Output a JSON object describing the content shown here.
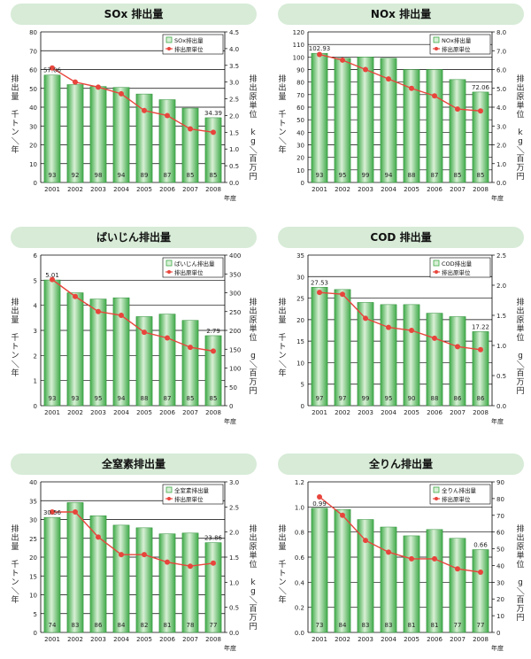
{
  "colors": {
    "bar": "#3faa49",
    "bar_light": "#d9f0d6",
    "line": "#e8453c",
    "banner": "#d7ebd7"
  },
  "chart_data": [
    {
      "type": "bar",
      "title": "SOx 排出量",
      "categories": [
        "2001",
        "2002",
        "2003",
        "2004",
        "2005",
        "2006",
        "2007",
        "2008"
      ],
      "xlabel": "年度",
      "ylabel": "排出量　千トン／年",
      "ylim": [
        0,
        80
      ],
      "yticks": [
        "0",
        "10",
        "20",
        "30",
        "40",
        "50",
        "60",
        "70",
        "80"
      ],
      "y2label": "排出原単位　kg／百万円",
      "y2lim": [
        0,
        4.5
      ],
      "y2ticks": [
        "0.0",
        "0.5",
        "1.0",
        "1.5",
        "2.0",
        "2.5",
        "3.0",
        "3.5",
        "4.0",
        "4.5"
      ],
      "legend": [
        "SOx排出量",
        "排出原単位"
      ],
      "legend_position": "top-right",
      "series": [
        {
          "name": "SOx排出量",
          "values": [
            57.06,
            52,
            51,
            50.5,
            47,
            44,
            39.5,
            34.39
          ]
        },
        {
          "name": "排出原単位",
          "values": [
            3.42,
            3.0,
            2.85,
            2.65,
            2.15,
            2.0,
            1.6,
            1.5
          ]
        }
      ],
      "bar_labels": [
        "93",
        "92",
        "98",
        "94",
        "89",
        "87",
        "85",
        "85"
      ],
      "value_labels": [
        "57.06",
        "34.39"
      ]
    },
    {
      "type": "bar",
      "title": "NOx 排出量",
      "categories": [
        "2001",
        "2002",
        "2003",
        "2004",
        "2005",
        "2006",
        "2007",
        "2008"
      ],
      "xlabel": "年度",
      "ylabel": "排出量　千トン／年",
      "ylim": [
        0,
        120
      ],
      "yticks": [
        "0",
        "10",
        "20",
        "30",
        "40",
        "50",
        "60",
        "70",
        "80",
        "90",
        "100",
        "110",
        "120"
      ],
      "y2label": "排出原単位　kg／百万円",
      "y2lim": [
        0,
        8.0
      ],
      "y2ticks": [
        "0.0",
        "1.0",
        "2.0",
        "3.0",
        "4.0",
        "5.0",
        "6.0",
        "7.0",
        "8.0"
      ],
      "legend": [
        "NOx排出量",
        "排出原単位"
      ],
      "legend_position": "top-right",
      "series": [
        {
          "name": "NOx排出量",
          "values": [
            102.93,
            99,
            100,
            99,
            90,
            90,
            82,
            72.06
          ]
        },
        {
          "name": "排出原単位",
          "values": [
            6.8,
            6.5,
            6.0,
            5.5,
            5.0,
            4.6,
            3.9,
            3.8
          ]
        }
      ],
      "bar_labels": [
        "93",
        "95",
        "99",
        "94",
        "88",
        "87",
        "85",
        "85"
      ],
      "value_labels": [
        "102.93",
        "72.06"
      ]
    },
    {
      "type": "bar",
      "title": "ばいじん排出量",
      "categories": [
        "2001",
        "2002",
        "2003",
        "2004",
        "2005",
        "2006",
        "2007",
        "2008"
      ],
      "xlabel": "年度",
      "ylabel": "排出量　千トン／年",
      "ylim": [
        0,
        6
      ],
      "yticks": [
        "0",
        "1",
        "2",
        "3",
        "4",
        "5",
        "6"
      ],
      "y2label": "排出原単位　g／百万円",
      "y2lim": [
        0,
        400
      ],
      "y2ticks": [
        "0",
        "50",
        "100",
        "150",
        "200",
        "250",
        "300",
        "350",
        "400"
      ],
      "legend": [
        "ばいじん排出量",
        "排出原単位"
      ],
      "legend_position": "top-right",
      "series": [
        {
          "name": "ばいじん排出量",
          "values": [
            5.01,
            4.5,
            4.25,
            4.3,
            3.55,
            3.65,
            3.4,
            2.79
          ]
        },
        {
          "name": "排出原単位",
          "values": [
            335,
            290,
            250,
            240,
            195,
            180,
            155,
            145
          ]
        }
      ],
      "bar_labels": [
        "93",
        "93",
        "95",
        "94",
        "88",
        "87",
        "85",
        "85"
      ],
      "value_labels": [
        "5.01",
        "2.79"
      ]
    },
    {
      "type": "bar",
      "title": "COD 排出量",
      "categories": [
        "2001",
        "2002",
        "2003",
        "2004",
        "2005",
        "2006",
        "2007",
        "2008"
      ],
      "xlabel": "年度",
      "ylabel": "排出量　千トン／年",
      "ylim": [
        0,
        35
      ],
      "yticks": [
        "0",
        "5",
        "10",
        "15",
        "20",
        "25",
        "30",
        "35"
      ],
      "y2label": "排出原単位　g／百万円",
      "y2lim": [
        0,
        2.5
      ],
      "y2ticks": [
        "0.0",
        "0.5",
        "1.0",
        "1.5",
        "2.0",
        "2.5"
      ],
      "legend": [
        "COD排出量",
        "排出原単位"
      ],
      "legend_position": "top-right",
      "series": [
        {
          "name": "COD排出量",
          "values": [
            27.53,
            27,
            24,
            23.5,
            23.5,
            21.5,
            20.7,
            17.22
          ]
        },
        {
          "name": "排出原単位",
          "values": [
            1.88,
            1.85,
            1.45,
            1.3,
            1.25,
            1.12,
            0.98,
            0.93
          ]
        }
      ],
      "bar_labels": [
        "97",
        "97",
        "99",
        "95",
        "90",
        "88",
        "86",
        "86"
      ],
      "value_labels": [
        "27.53",
        "17.22"
      ]
    },
    {
      "type": "bar",
      "title": "全窒素排出量",
      "categories": [
        "2001",
        "2002",
        "2003",
        "2004",
        "2005",
        "2006",
        "2007",
        "2008"
      ],
      "xlabel": "年度",
      "ylabel": "排出量　千トン／年",
      "ylim": [
        0,
        40
      ],
      "yticks": [
        "0",
        "5",
        "10",
        "15",
        "20",
        "25",
        "30",
        "35",
        "40"
      ],
      "y2label": "排出原単位　kg／百万円",
      "y2lim": [
        0,
        3.0
      ],
      "y2ticks": [
        "0.0",
        "0.5",
        "1.0",
        "1.5",
        "2.0",
        "2.5",
        "3.0"
      ],
      "legend": [
        "全窒素排出量",
        "排出原単位"
      ],
      "legend_position": "top-right",
      "series": [
        {
          "name": "全窒素排出量",
          "values": [
            30.56,
            34.5,
            31,
            28.5,
            27.8,
            26.2,
            26.4,
            23.86
          ]
        },
        {
          "name": "排出原単位",
          "values": [
            2.4,
            2.4,
            1.9,
            1.55,
            1.55,
            1.4,
            1.32,
            1.38
          ]
        }
      ],
      "bar_labels": [
        "74",
        "83",
        "86",
        "84",
        "82",
        "81",
        "78",
        "77"
      ],
      "value_labels": [
        "30.56",
        "23.86"
      ]
    },
    {
      "type": "bar",
      "title": "全りん排出量",
      "categories": [
        "2001",
        "2002",
        "2003",
        "2004",
        "2005",
        "2006",
        "2007",
        "2008"
      ],
      "xlabel": "年度",
      "ylabel": "排出量　千トン／年",
      "ylim": [
        0,
        1.2
      ],
      "yticks": [
        "0.0",
        "0.2",
        "0.4",
        "0.6",
        "0.8",
        "1.0",
        "1.2"
      ],
      "y2label": "排出原単位　g／百万円",
      "y2lim": [
        0,
        90
      ],
      "y2ticks": [
        "0",
        "10",
        "20",
        "30",
        "40",
        "50",
        "60",
        "70",
        "80",
        "90"
      ],
      "legend": [
        "全りん排出量",
        "排出原単位"
      ],
      "legend_position": "top-right",
      "series": [
        {
          "name": "全りん排出量",
          "values": [
            0.99,
            0.98,
            0.9,
            0.84,
            0.77,
            0.82,
            0.75,
            0.66
          ]
        },
        {
          "name": "排出原単位",
          "values": [
            81,
            70,
            55,
            48,
            44,
            44,
            38,
            36
          ]
        }
      ],
      "bar_labels": [
        "73",
        "84",
        "83",
        "83",
        "81",
        "81",
        "77",
        "77"
      ],
      "value_labels": [
        "0.99",
        "0.66"
      ]
    }
  ]
}
